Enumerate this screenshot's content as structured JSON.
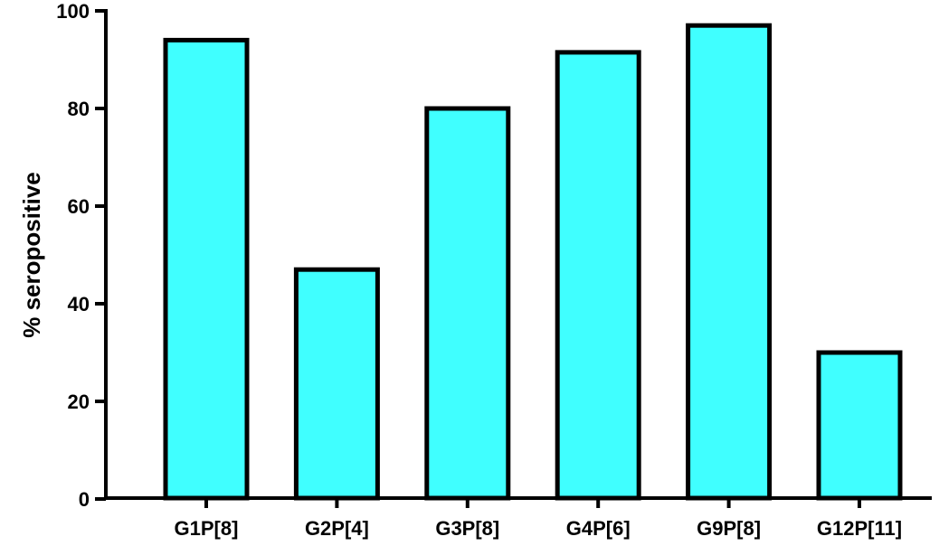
{
  "chart_data": {
    "type": "bar",
    "title": "",
    "xlabel": "",
    "ylabel": "% seropositive",
    "categories": [
      "G1P[8]",
      "G2P[4]",
      "G3P[8]",
      "G4P[6]",
      "G9P[8]",
      "G12P[11]"
    ],
    "values": [
      94,
      47,
      80,
      91.5,
      97,
      30
    ],
    "ylim": [
      0,
      100
    ],
    "yticks": [
      0,
      20,
      40,
      60,
      80,
      100
    ],
    "grid": false,
    "legend": "none",
    "bar_color": "#40FFFF",
    "edge_color": "#000000"
  }
}
